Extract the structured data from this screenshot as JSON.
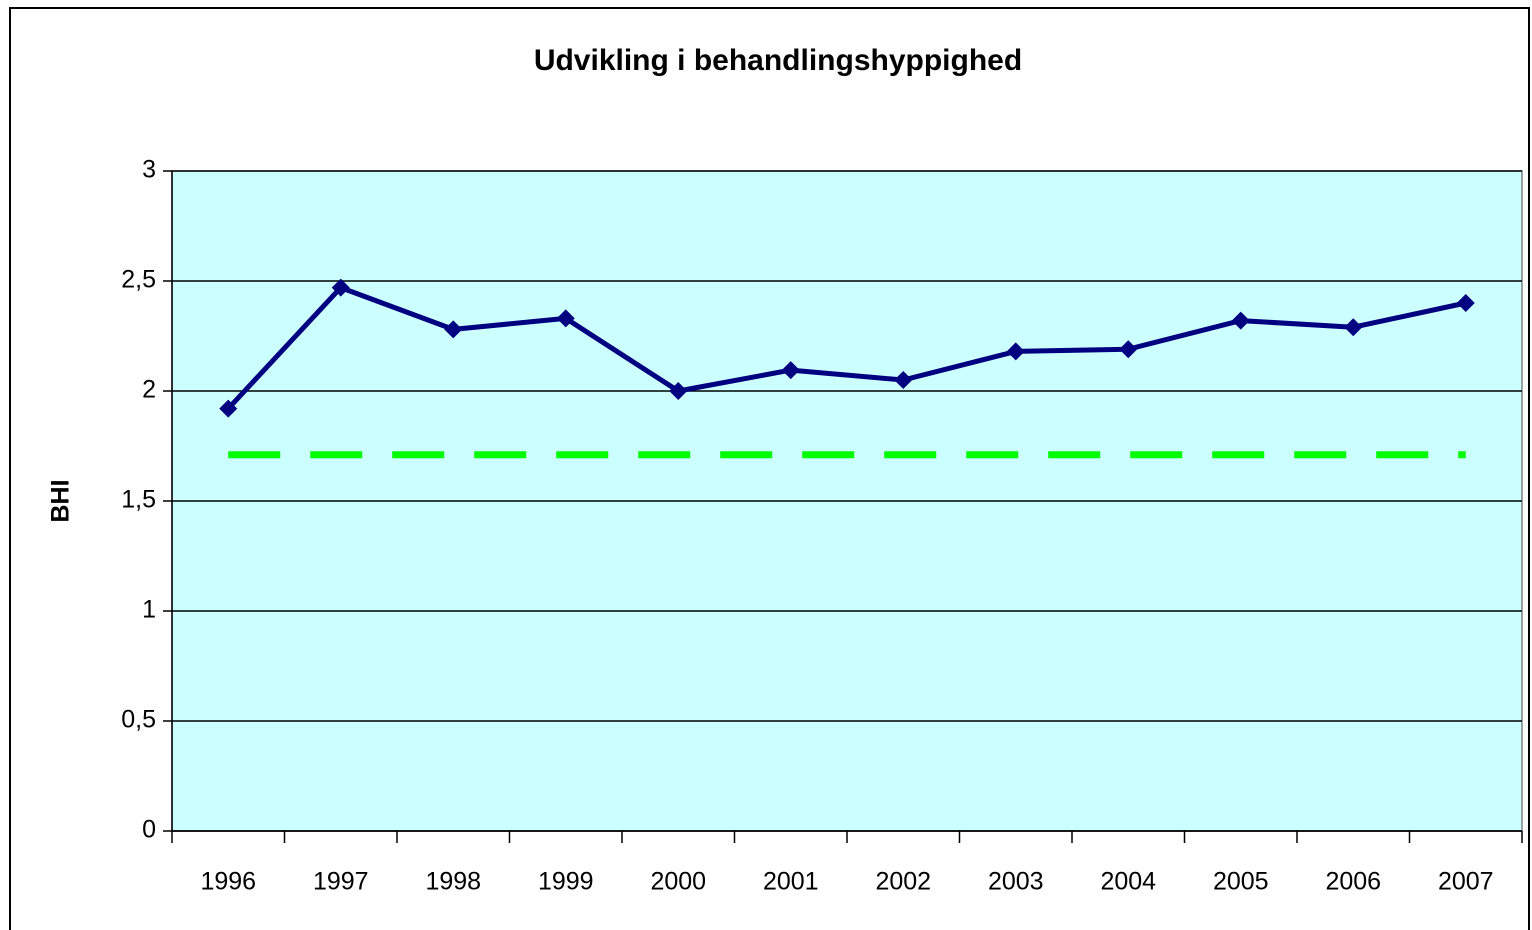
{
  "chart_data": {
    "type": "line",
    "title": "Udvikling i behandlingshyppighed",
    "y_label": "BHI",
    "categories": [
      "1996",
      "1997",
      "1998",
      "1999",
      "2000",
      "2001",
      "2002",
      "2003",
      "2004",
      "2005",
      "2006",
      "2007"
    ],
    "series": [
      {
        "color": "#000080",
        "marker": "diamond",
        "dashed": false,
        "values": [
          1.92,
          2.47,
          2.28,
          2.33,
          2.0,
          2.095,
          2.05,
          2.18,
          2.19,
          2.32,
          2.29,
          2.4
        ]
      },
      {
        "color": "#00ff00",
        "marker": "none",
        "dashed": true,
        "values": [
          1.71,
          1.71,
          1.71,
          1.71,
          1.71,
          1.71,
          1.71,
          1.71,
          1.71,
          1.71,
          1.71,
          1.71
        ]
      }
    ],
    "ylim": [
      0,
      3
    ],
    "yticks": [
      0,
      {
        "value": 0.5,
        "label": "0,5"
      },
      1,
      {
        "value": 1.5,
        "label": "1,5"
      },
      2,
      {
        "value": 2.5,
        "label": "2,5"
      },
      3
    ],
    "grid": true,
    "plot_background": "#ccffff"
  }
}
